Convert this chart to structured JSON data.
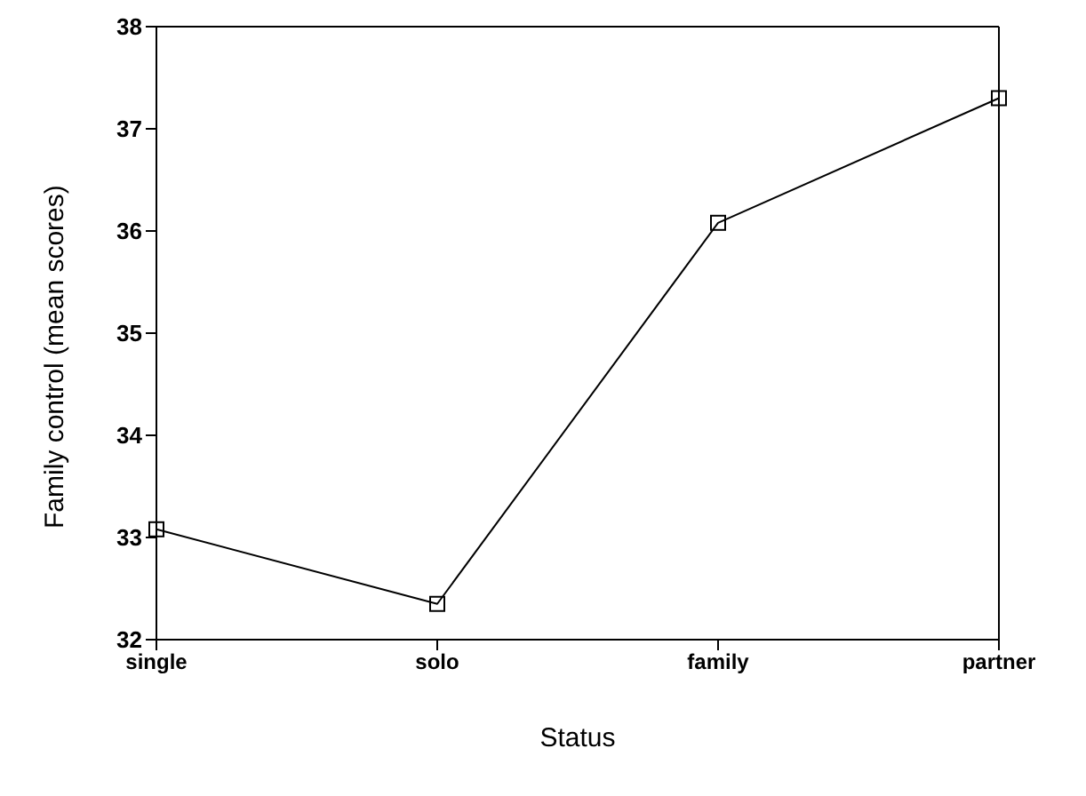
{
  "chart_data": {
    "type": "line",
    "xlabel": "Status",
    "ylabel": "Family control (mean scores)",
    "categories": [
      "single",
      "solo",
      "family",
      "partner"
    ],
    "series": [
      {
        "color": "#000000",
        "values": [
          33.08,
          32.35,
          36.08,
          37.3
        ]
      }
    ],
    "ylim": [
      32,
      38
    ],
    "yticks": [
      32,
      33,
      34,
      35,
      36,
      37,
      38
    ],
    "grid": false,
    "legend": false,
    "marker": "square",
    "line_style": "solid"
  }
}
